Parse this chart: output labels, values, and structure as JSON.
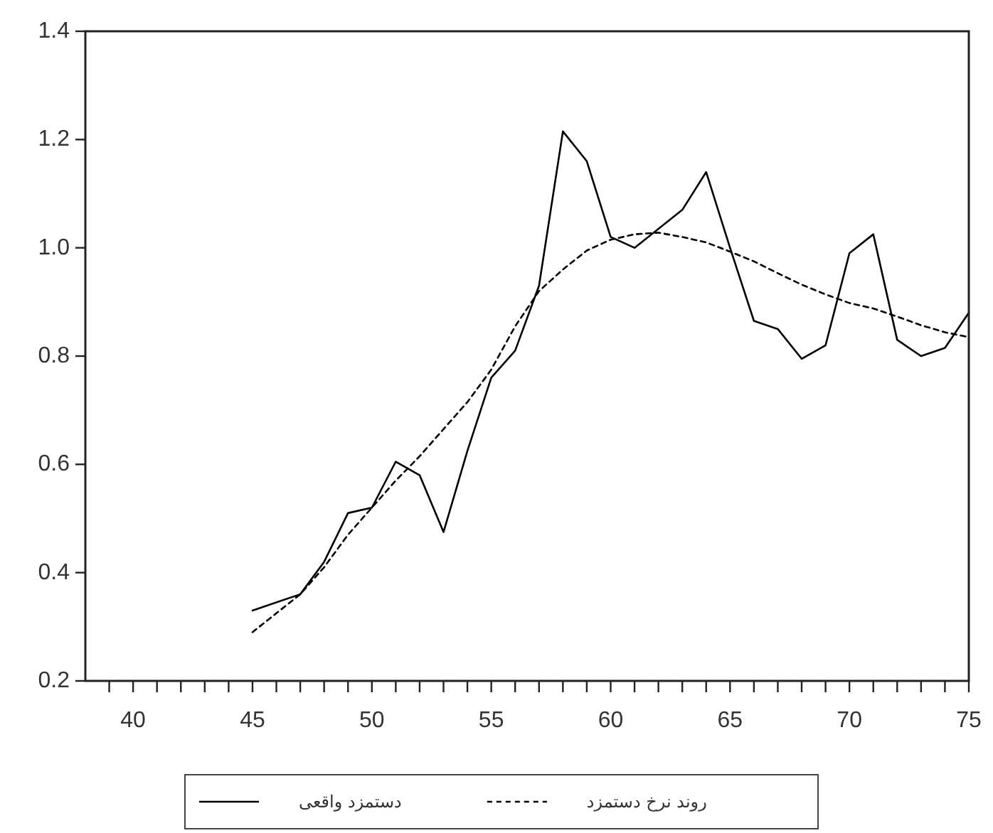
{
  "chart_data": {
    "type": "line",
    "x": [
      45,
      46,
      47,
      48,
      49,
      50,
      51,
      52,
      53,
      54,
      55,
      56,
      57,
      58,
      59,
      60,
      61,
      62,
      63,
      64,
      65,
      66,
      67,
      68,
      69,
      70,
      71,
      72,
      73,
      74,
      75
    ],
    "series": [
      {
        "name": "دستمزد واقعی",
        "color": "#000000",
        "line_style": "solid",
        "values": [
          0.33,
          0.345,
          0.36,
          0.42,
          0.51,
          0.52,
          0.605,
          0.58,
          0.475,
          0.625,
          0.76,
          0.81,
          0.93,
          1.215,
          1.16,
          1.02,
          1.0,
          1.035,
          1.07,
          1.14,
          1.0,
          0.865,
          0.85,
          0.795,
          0.82,
          0.99,
          1.025,
          0.83,
          0.8,
          0.815,
          0.88
        ]
      },
      {
        "name": "روند نرخ دستمزد",
        "color": "#000000",
        "line_style": "dashed",
        "values": [
          0.29,
          0.325,
          0.36,
          0.41,
          0.47,
          0.52,
          0.57,
          0.615,
          0.665,
          0.715,
          0.775,
          0.855,
          0.92,
          0.96,
          0.995,
          1.015,
          1.025,
          1.028,
          1.02,
          1.01,
          0.993,
          0.975,
          0.953,
          0.932,
          0.914,
          0.898,
          0.888,
          0.873,
          0.857,
          0.844,
          0.835
        ]
      }
    ],
    "xlim": [
      38,
      75
    ],
    "xticks": [
      {
        "value": 39,
        "label": null
      },
      40,
      {
        "value": 41,
        "label": null
      },
      {
        "value": 42,
        "label": null
      },
      {
        "value": 43,
        "label": null
      },
      {
        "value": 44,
        "label": null
      },
      45,
      {
        "value": 46,
        "label": null
      },
      {
        "value": 47,
        "label": null
      },
      {
        "value": 48,
        "label": null
      },
      {
        "value": 49,
        "label": null
      },
      50,
      {
        "value": 51,
        "label": null
      },
      {
        "value": 52,
        "label": null
      },
      {
        "value": 53,
        "label": null
      },
      {
        "value": 54,
        "label": null
      },
      55,
      {
        "value": 56,
        "label": null
      },
      {
        "value": 57,
        "label": null
      },
      {
        "value": 58,
        "label": null
      },
      {
        "value": 59,
        "label": null
      },
      60,
      {
        "value": 61,
        "label": null
      },
      {
        "value": 62,
        "label": null
      },
      {
        "value": 63,
        "label": null
      },
      {
        "value": 64,
        "label": null
      },
      65,
      {
        "value": 66,
        "label": null
      },
      {
        "value": 67,
        "label": null
      },
      {
        "value": 68,
        "label": null
      },
      {
        "value": 69,
        "label": null
      },
      70,
      {
        "value": 71,
        "label": null
      },
      {
        "value": 72,
        "label": null
      },
      {
        "value": 73,
        "label": null
      },
      {
        "value": 74,
        "label": null
      },
      75
    ],
    "ylim": [
      0.2,
      1.4
    ],
    "yticks": [
      0.2,
      0.4,
      0.6,
      0.8,
      {
        "value": 1,
        "label": "1.0"
      },
      1.2,
      1.4
    ],
    "legend": "bottom"
  }
}
